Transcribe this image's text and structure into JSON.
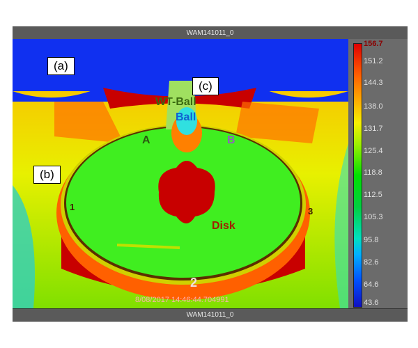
{
  "window": {
    "title": "WAM141011_0",
    "footer": "WAM141011_0"
  },
  "image": {
    "timestamp": "8/08/2017 14:46:44.704991",
    "callouts": [
      "(a)",
      "(b)",
      "(c)"
    ],
    "markers": {
      "wt_ball": "WT-Ball",
      "ball": "Ball",
      "a": "A",
      "b": "B",
      "disk": "Disk",
      "p1": "1",
      "p2": "2",
      "p3": "3"
    }
  },
  "color_scale": {
    "ticks": [
      "156.7",
      "151.2",
      "144.3",
      "138.0",
      "131.7",
      "125.4",
      "118.8",
      "112.5",
      "105.3",
      "95.8",
      "82.6",
      "64.6",
      "43.6"
    ],
    "max_color": "#e00000",
    "min_color": "#1010c0"
  }
}
